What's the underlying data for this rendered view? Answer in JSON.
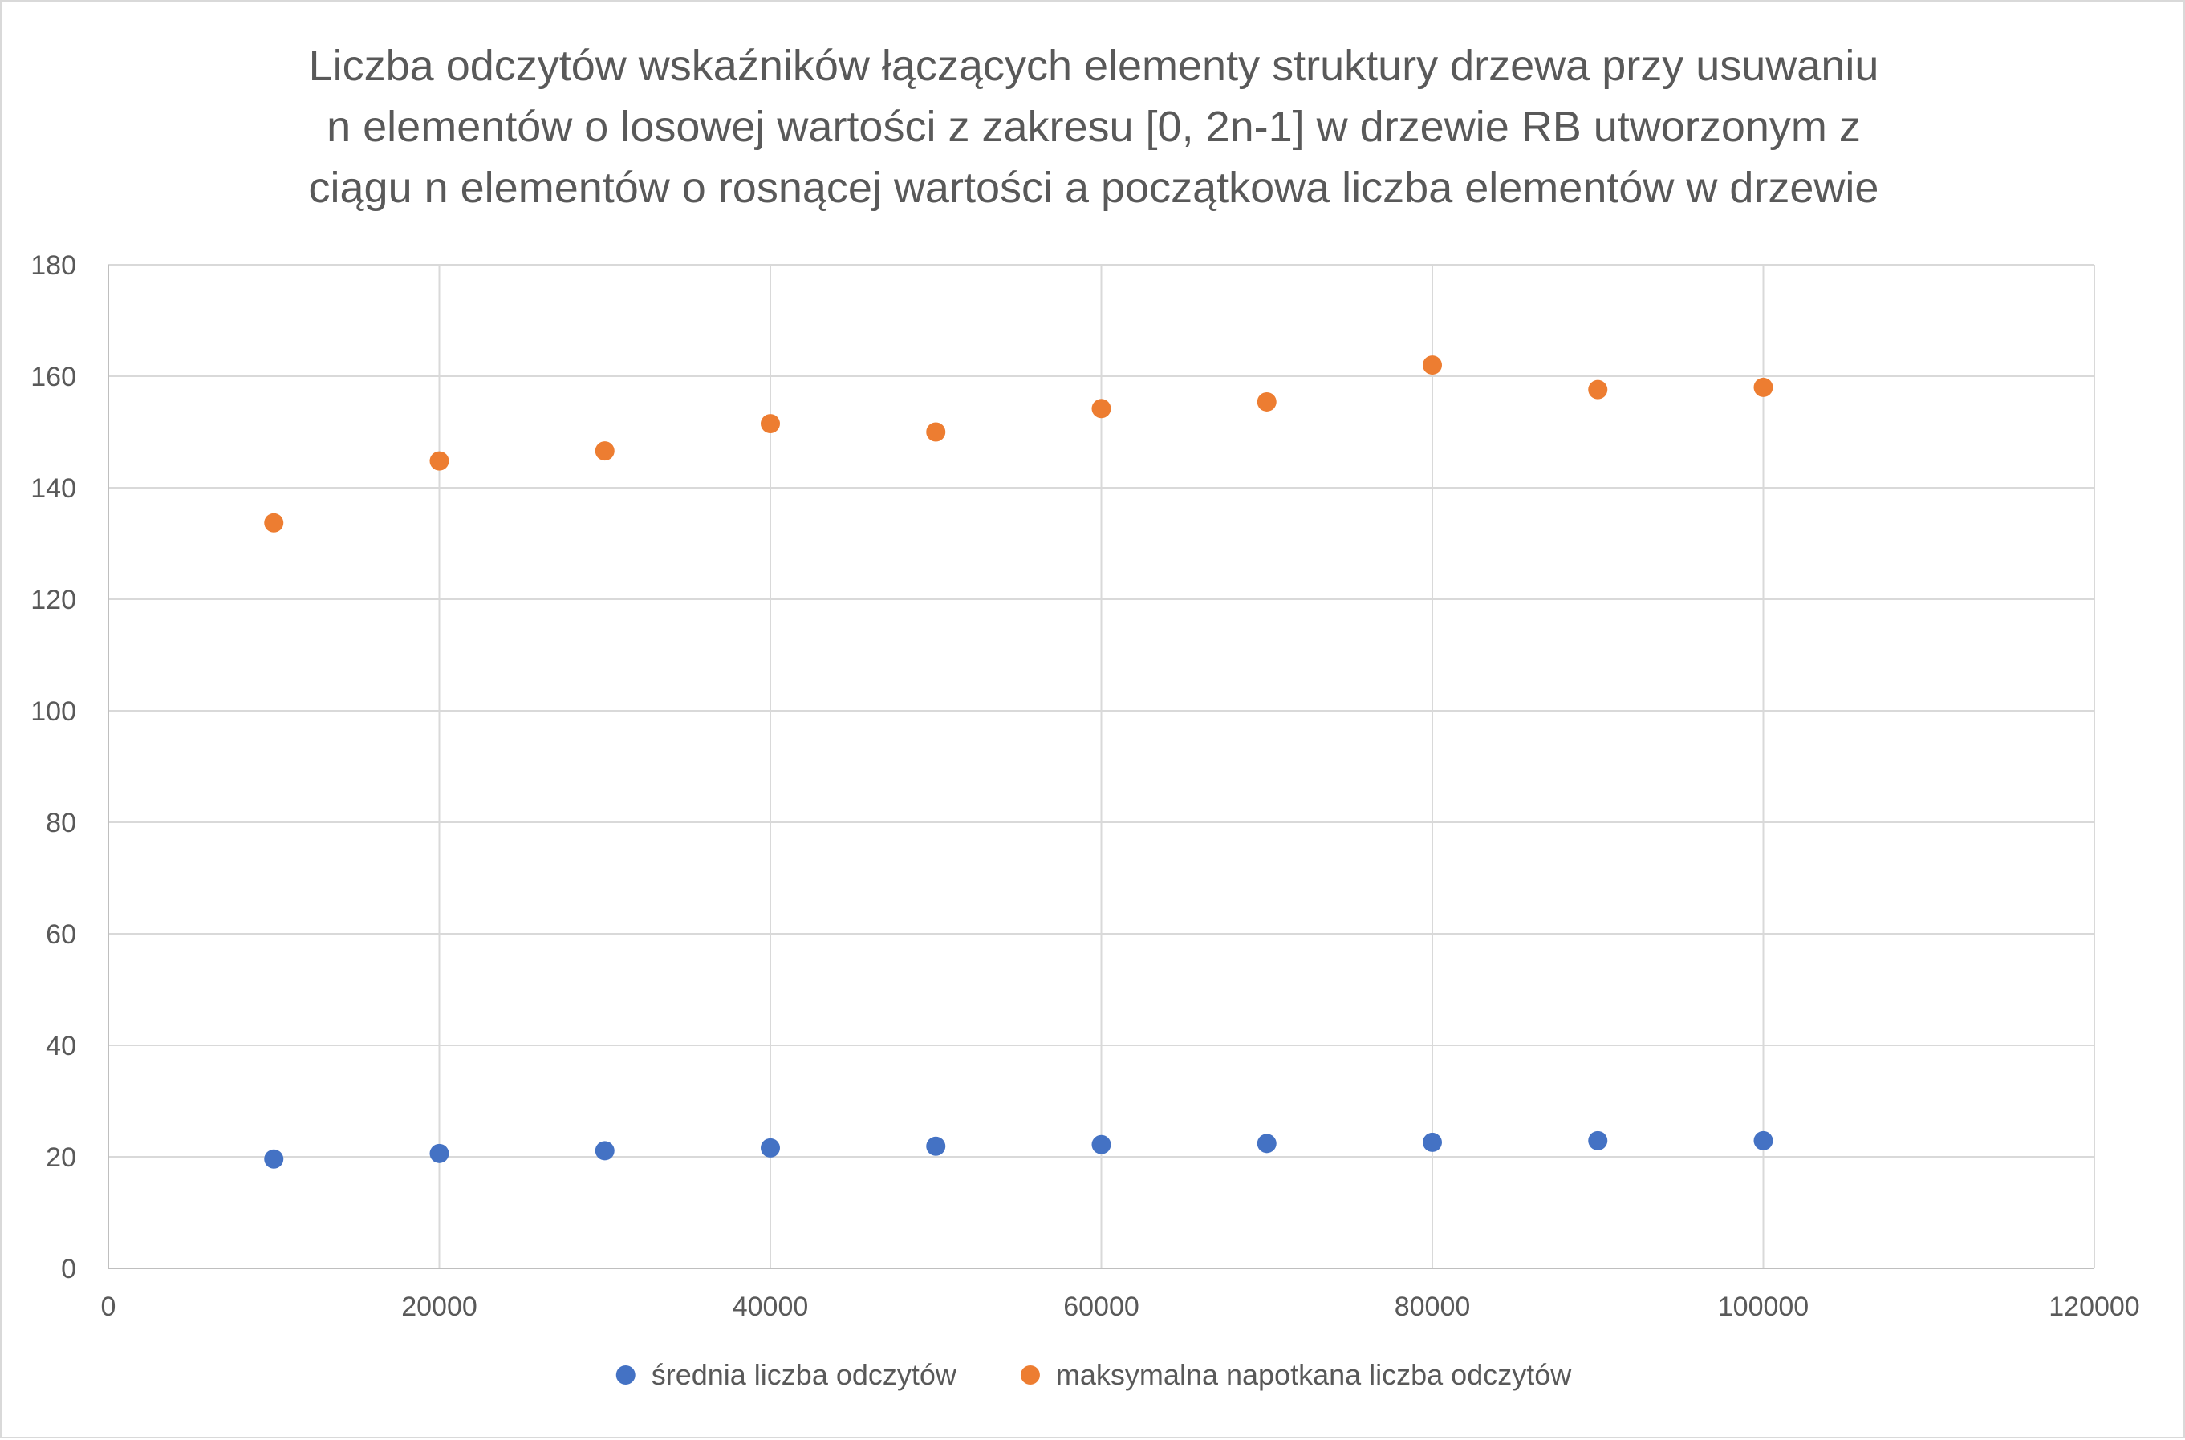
{
  "chart_data": {
    "type": "scatter",
    "title_lines": [
      "Liczba odczytów wskaźników łączących elementy struktury drzewa przy usuwaniu",
      "n elementów o losowej wartości z zakresu [0, 2n-1] w drzewie RB utworzonym z",
      "ciągu n elementów o rosnącej wartości a początkowa liczba elementów w drzewie"
    ],
    "xlabel": "",
    "ylabel": "",
    "xlim": [
      0,
      120000
    ],
    "ylim": [
      0,
      180
    ],
    "x_ticks": [
      0,
      20000,
      40000,
      60000,
      80000,
      100000,
      120000
    ],
    "y_ticks": [
      0,
      20,
      40,
      60,
      80,
      100,
      120,
      140,
      160,
      180
    ],
    "grid": true,
    "legend_position": "bottom",
    "series": [
      {
        "name": "średnia liczba odczytów",
        "color": "#4472C4",
        "points": [
          {
            "x": 10000,
            "y": 19.6
          },
          {
            "x": 20000,
            "y": 20.6
          },
          {
            "x": 30000,
            "y": 21.1
          },
          {
            "x": 40000,
            "y": 21.6
          },
          {
            "x": 50000,
            "y": 21.9
          },
          {
            "x": 60000,
            "y": 22.2
          },
          {
            "x": 70000,
            "y": 22.4
          },
          {
            "x": 80000,
            "y": 22.6
          },
          {
            "x": 90000,
            "y": 22.9
          },
          {
            "x": 100000,
            "y": 22.9
          }
        ]
      },
      {
        "name": "maksymalna napotkana liczba odczytów",
        "color": "#ED7D31",
        "points": [
          {
            "x": 10000,
            "y": 133.7
          },
          {
            "x": 20000,
            "y": 144.8
          },
          {
            "x": 30000,
            "y": 146.6
          },
          {
            "x": 40000,
            "y": 151.5
          },
          {
            "x": 50000,
            "y": 150.0
          },
          {
            "x": 60000,
            "y": 154.2
          },
          {
            "x": 70000,
            "y": 155.4
          },
          {
            "x": 80000,
            "y": 162.0
          },
          {
            "x": 90000,
            "y": 157.6
          },
          {
            "x": 100000,
            "y": 158.0
          }
        ]
      }
    ]
  },
  "colors": {
    "grid": "#d9d9d9",
    "axis": "#bfbfbf",
    "text": "#595959"
  }
}
